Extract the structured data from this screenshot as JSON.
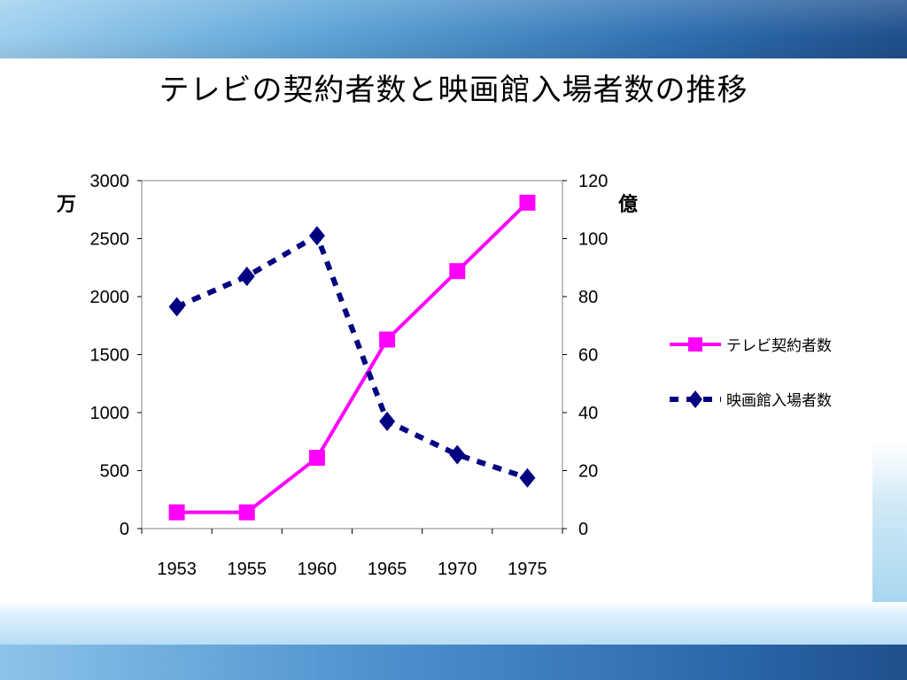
{
  "slide": {
    "title": "テレビの契約者数と映画館入場者数の推移"
  },
  "colors": {
    "tv_series": "#ff00ff",
    "cinema_series": "#000080",
    "header_band": "#2f6fb0"
  },
  "chart_data": {
    "type": "line",
    "x": [
      "1953",
      "1955",
      "1960",
      "1965",
      "1970",
      "1975"
    ],
    "y_left": {
      "unit_label": "万",
      "ticks": [
        "0",
        "500",
        "1000",
        "1500",
        "2000",
        "2500",
        "3000"
      ],
      "range": [
        0,
        3000
      ]
    },
    "y_right": {
      "unit_label": "億",
      "ticks": [
        "0",
        "20",
        "40",
        "60",
        "80",
        "100",
        "120"
      ],
      "range": [
        0,
        120
      ]
    },
    "series": [
      {
        "name": "テレビ契約者数",
        "axis": "left",
        "marker": "square",
        "line": "solid",
        "values": [
          140,
          140,
          610,
          1630,
          2220,
          2810
        ]
      },
      {
        "name": "映画館入場者数",
        "axis": "right",
        "marker": "diamond",
        "line": "dashed",
        "values": [
          76.5,
          87,
          101,
          37,
          25.5,
          17.5
        ]
      }
    ],
    "grid": false,
    "legend": "right"
  }
}
